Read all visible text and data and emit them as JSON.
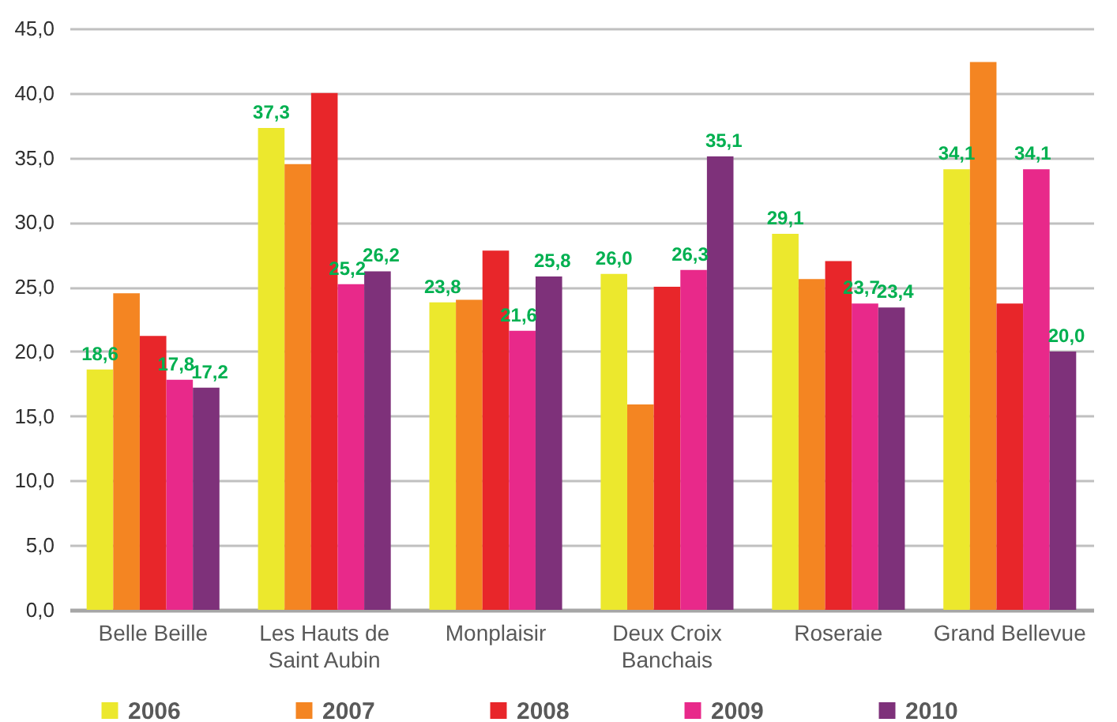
{
  "chart_data": {
    "type": "bar",
    "categories": [
      "Belle Beille",
      "Les Hauts de\nSaint Aubin",
      "Monplaisir",
      "Deux Croix\nBanchais",
      "Roseraie",
      "Grand Bellevue"
    ],
    "series": [
      {
        "name": "2006",
        "color": "#ece82d",
        "values": [
          18.6,
          37.3,
          23.8,
          26.0,
          29.1,
          34.1
        ],
        "value_labels": [
          "18,6",
          "37,3",
          "23,8",
          "26,0",
          "29,1",
          "34,1"
        ]
      },
      {
        "name": "2007",
        "color": "#f48522",
        "values": [
          24.5,
          34.5,
          24.0,
          15.9,
          25.6,
          42.4
        ]
      },
      {
        "name": "2008",
        "color": "#e8262a",
        "values": [
          21.2,
          40.0,
          27.8,
          25.0,
          27.0,
          23.7
        ]
      },
      {
        "name": "2009",
        "color": "#e8298a",
        "values": [
          17.8,
          25.2,
          21.6,
          26.3,
          23.7,
          34.1
        ],
        "value_labels": [
          "17,8",
          "25,2",
          "21,6",
          "26,3",
          "23,7",
          "34,1"
        ]
      },
      {
        "name": "2010",
        "color": "#7e317a",
        "values": [
          17.2,
          26.2,
          25.8,
          35.1,
          23.4,
          20.0
        ],
        "value_labels": [
          "17,2",
          "26,2",
          "25,8",
          "35,1",
          "23,4",
          "20,0"
        ]
      }
    ],
    "ylim": [
      0,
      45
    ],
    "yticks": [
      {
        "value": 0,
        "label": "0,0"
      },
      {
        "value": 5,
        "label": "5,0"
      },
      {
        "value": 10,
        "label": "10,0"
      },
      {
        "value": 15,
        "label": "15,0"
      },
      {
        "value": 20,
        "label": "20,0"
      },
      {
        "value": 25,
        "label": "25,0"
      },
      {
        "value": 30,
        "label": "30,0"
      },
      {
        "value": 35,
        "label": "35,0"
      },
      {
        "value": 40,
        "label": "40,0"
      },
      {
        "value": 45,
        "label": "45,0"
      }
    ],
    "grid": "y",
    "legend": "bottom"
  }
}
